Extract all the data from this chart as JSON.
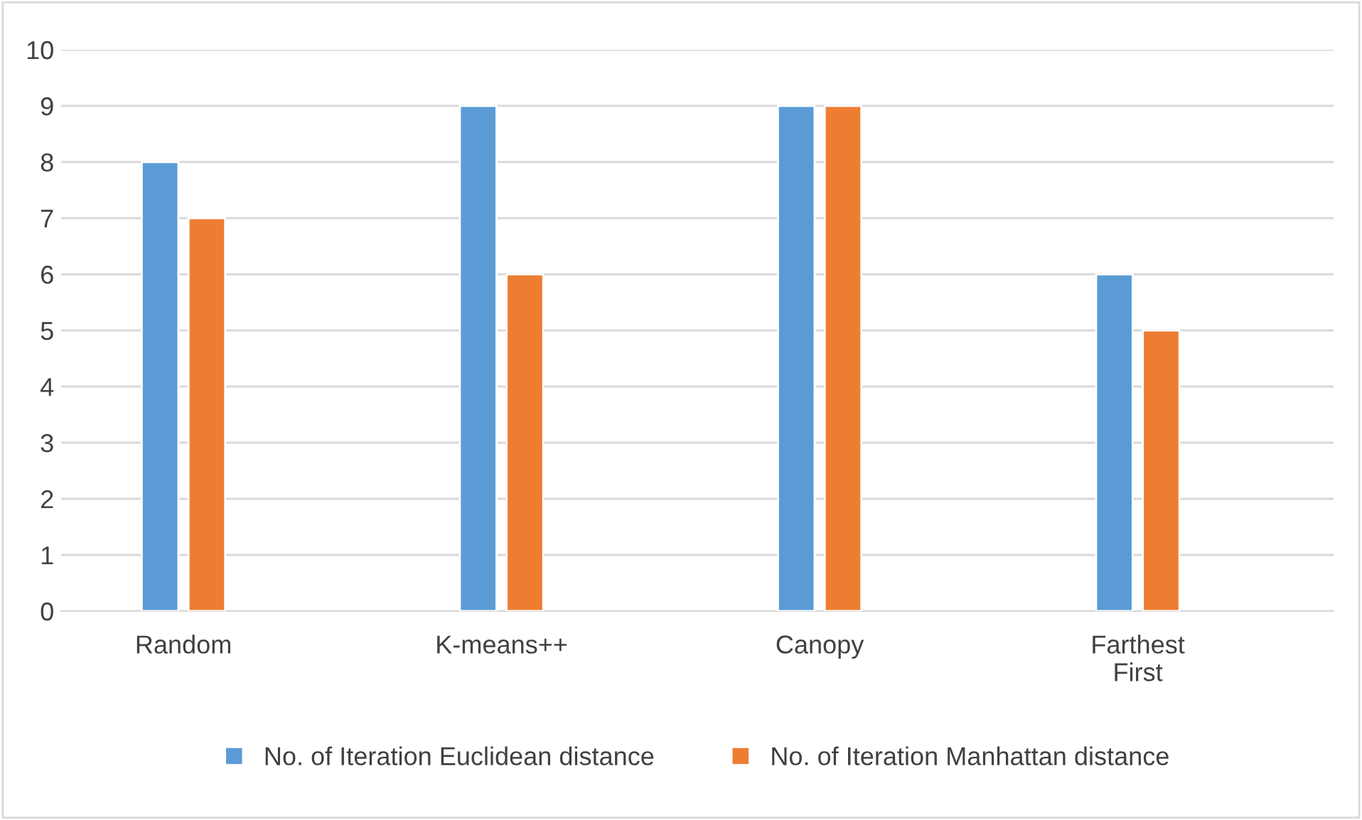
{
  "chart_data": {
    "type": "bar",
    "categories": [
      "Random",
      "K-means++",
      "Canopy",
      "Farthest\nFirst"
    ],
    "series": [
      {
        "name": "No. of Iteration Euclidean distance",
        "color": "#5b9bd5",
        "values": [
          8,
          9,
          9,
          6
        ]
      },
      {
        "name": "No. of Iteration Manhattan distance",
        "color": "#ed7d31",
        "values": [
          7,
          6,
          9,
          5
        ]
      }
    ],
    "ylim": [
      0,
      10
    ],
    "yticks": [
      0,
      1,
      2,
      3,
      4,
      5,
      6,
      7,
      8,
      9,
      10
    ],
    "grid": "y",
    "legend": "bottom"
  }
}
